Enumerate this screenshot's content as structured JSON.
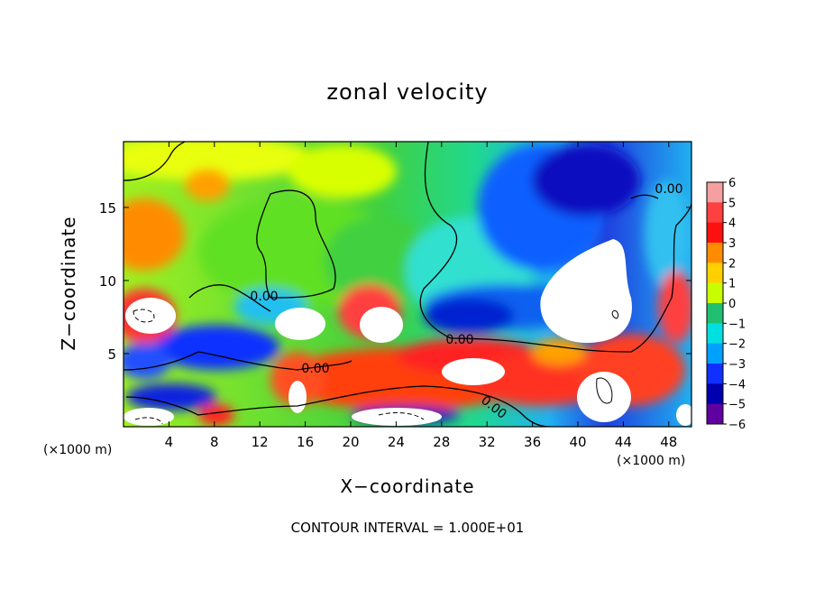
{
  "chart_data": {
    "type": "heatmap",
    "title": "zonal velocity",
    "xlabel": "X−coordinate",
    "ylabel": "Z−coordinate",
    "x_unit_label": "(×1000 m)",
    "footer": "CONTOUR INTERVAL = 1.000E+01",
    "xlim": [
      0,
      50
    ],
    "ylim": [
      0,
      19.5
    ],
    "x_ticks": [
      4,
      8,
      12,
      16,
      20,
      24,
      28,
      32,
      36,
      40,
      44,
      48
    ],
    "y_ticks": [
      5,
      10,
      15
    ],
    "colorbar": {
      "ticks": [
        "6",
        "5",
        "4",
        "3",
        "2",
        "1",
        "0",
        "−1",
        "−2",
        "−3",
        "−4",
        "−5",
        "−6"
      ],
      "range": [
        -6,
        6
      ],
      "colors": {
        "6": "#f5a0a0",
        "5": "#ff4040",
        "4": "#ff1010",
        "3": "#ff8c00",
        "2": "#ffd000",
        "1": "#c8ff00",
        "0": "#30d030",
        "-1": "#20c070",
        "-2": "#00e0e0",
        "-3": "#00a0ff",
        "-4": "#1030ff",
        "-5": "#0000b0",
        "-6": "#6000a0"
      }
    },
    "contour_labels": [
      "0.00",
      "0.00",
      "0.00",
      "0.00",
      "0.00"
    ]
  }
}
